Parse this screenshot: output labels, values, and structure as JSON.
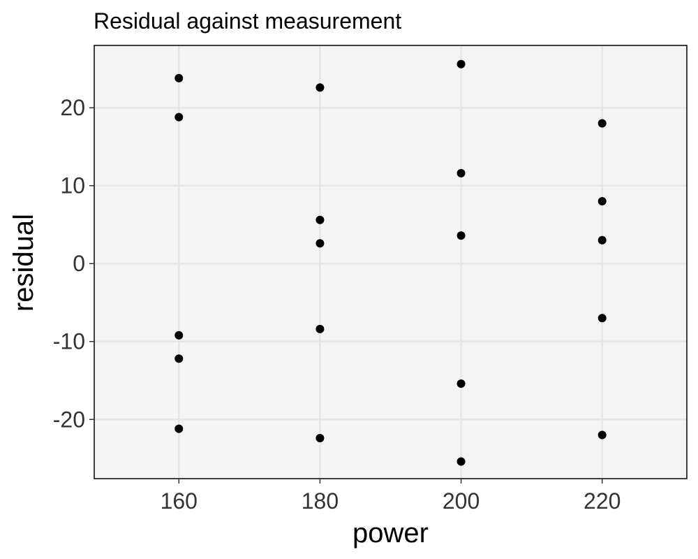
{
  "chart_data": {
    "type": "scatter",
    "title": "Residual against measurement",
    "xlabel": "power",
    "ylabel": "residual",
    "xlim": [
      148,
      232
    ],
    "ylim": [
      -27.6,
      28
    ],
    "x_ticks": [
      160,
      180,
      200,
      220
    ],
    "y_ticks": [
      -20,
      -10,
      0,
      10,
      20
    ],
    "x_tick_labels": [
      "160",
      "180",
      "200",
      "220"
    ],
    "y_tick_labels": [
      "-20",
      "-10",
      "0",
      "10",
      "20"
    ],
    "grid": true,
    "legend": "none",
    "colors": {
      "panel": "#f4f4f4",
      "grid": "#e6e6e6",
      "point": "#000000"
    },
    "points": [
      {
        "x": 160,
        "y": 23.8
      },
      {
        "x": 160,
        "y": 18.8
      },
      {
        "x": 160,
        "y": -9.2
      },
      {
        "x": 160,
        "y": -12.2
      },
      {
        "x": 160,
        "y": -21.2
      },
      {
        "x": 180,
        "y": 22.6
      },
      {
        "x": 180,
        "y": 5.6
      },
      {
        "x": 180,
        "y": 2.6
      },
      {
        "x": 180,
        "y": -8.4
      },
      {
        "x": 180,
        "y": -22.4
      },
      {
        "x": 200,
        "y": 25.6
      },
      {
        "x": 200,
        "y": 11.6
      },
      {
        "x": 200,
        "y": 3.6
      },
      {
        "x": 200,
        "y": -15.4
      },
      {
        "x": 200,
        "y": -25.4
      },
      {
        "x": 220,
        "y": 18.0
      },
      {
        "x": 220,
        "y": 8.0
      },
      {
        "x": 220,
        "y": 3.0
      },
      {
        "x": 220,
        "y": -7.0
      },
      {
        "x": 220,
        "y": -22.0
      }
    ]
  }
}
